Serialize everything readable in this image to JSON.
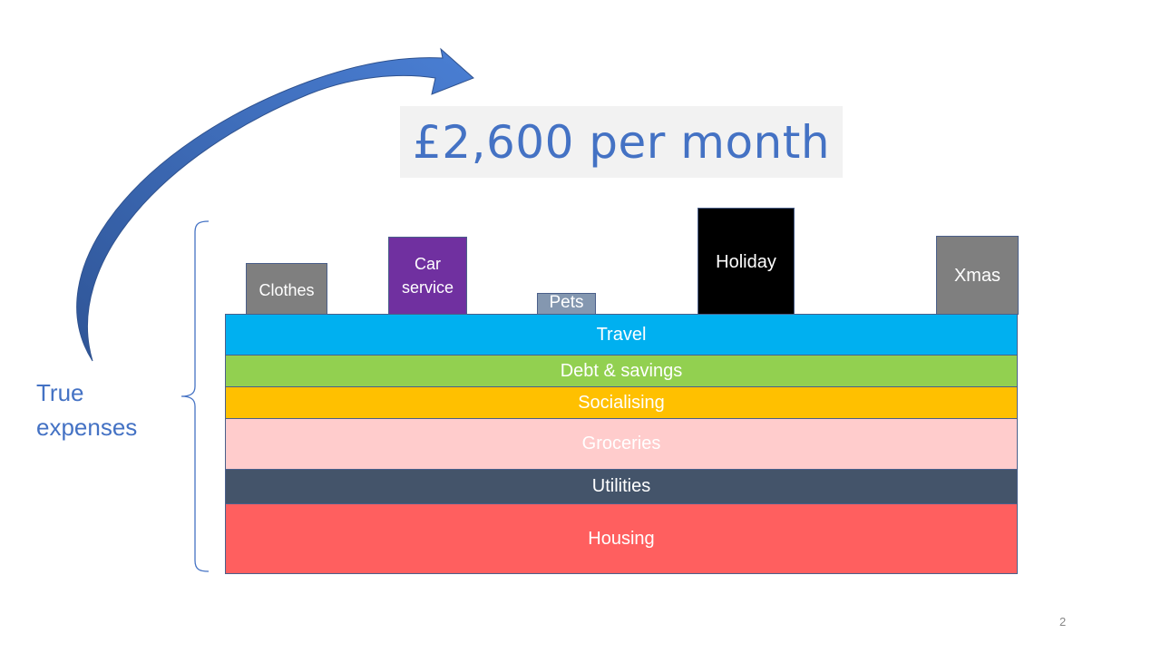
{
  "title": "£2,600 per month",
  "side_label": {
    "line1": "True",
    "line2": "expenses"
  },
  "layers": {
    "travel": "Travel",
    "debt": "Debt & savings",
    "socialising": "Socialising",
    "groceries": "Groceries",
    "utilities": "Utilities",
    "housing": "Housing"
  },
  "blocks": {
    "clothes": "Clothes",
    "car_service_line1": "Car",
    "car_service_line2": "service",
    "pets": "Pets",
    "holiday": "Holiday",
    "xmas": "Xmas"
  },
  "colors": {
    "title": "#4472c4",
    "travel": "#00b0f0",
    "debt": "#92d050",
    "socialising": "#ffc000",
    "groceries": "#ffcccc",
    "utilities": "#44546a",
    "housing": "#ff5f5f",
    "clothes": "#7f7f7f",
    "car_service": "#7030a0",
    "pets": "#8497b0",
    "holiday": "#000000",
    "xmas": "#7f7f7f",
    "arrow": "#3a66b8"
  },
  "page_number": "2"
}
